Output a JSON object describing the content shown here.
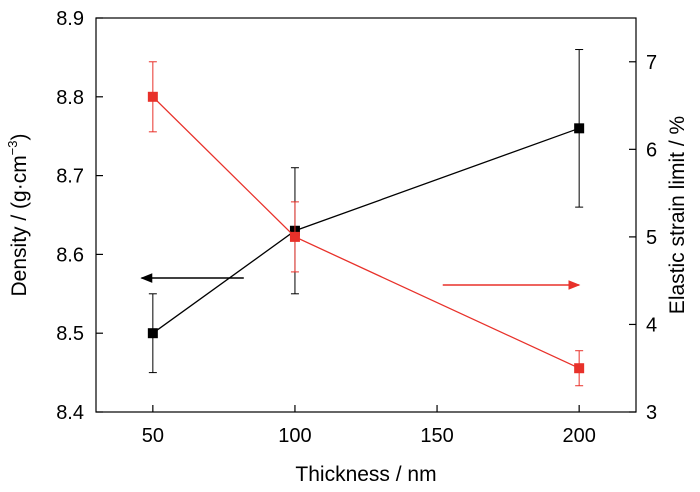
{
  "chart_data": {
    "type": "line",
    "title": "",
    "xlabel": "Thickness / nm",
    "ylabel_left_main": "Density / (g·cm",
    "ylabel_left_sup": "−3",
    "ylabel_left_close": ")",
    "ylabel_right": "Elastic strain limit / %",
    "xlim": [
      30,
      220
    ],
    "ylim_left": [
      8.4,
      8.9
    ],
    "ylim_right": [
      3,
      7.5
    ],
    "x_ticks": [
      50,
      100,
      150,
      200
    ],
    "y_left_ticks": [
      8.4,
      8.5,
      8.6,
      8.7,
      8.8,
      8.9
    ],
    "y_right_ticks": [
      3,
      4,
      5,
      6,
      7
    ],
    "x_tick_labels": [
      "50",
      "100",
      "150",
      "200"
    ],
    "y_left_tick_labels": [
      "8.4",
      "8.5",
      "8.6",
      "8.7",
      "8.8",
      "8.9"
    ],
    "y_right_tick_labels": [
      "3",
      "4",
      "5",
      "6",
      "7"
    ],
    "series": [
      {
        "axis": "left",
        "color": "#000000",
        "x": [
          50,
          100,
          200
        ],
        "y": [
          8.5,
          8.63,
          8.76
        ],
        "err": [
          0.05,
          0.08,
          0.1
        ]
      },
      {
        "axis": "right",
        "color": "#e8312a",
        "x": [
          50,
          100,
          200
        ],
        "y": [
          6.6,
          5.0,
          3.5
        ],
        "err": [
          0.4,
          0.4,
          0.2
        ]
      }
    ],
    "annotations": [
      {
        "type": "arrow",
        "direction": "left",
        "axis": "left",
        "color": "#000000",
        "x_from": 82,
        "x_to": 46,
        "y": 8.57
      },
      {
        "type": "arrow",
        "direction": "right",
        "axis": "right",
        "color": "#e8312a",
        "x_from": 152,
        "x_to": 200,
        "y": 4.45
      }
    ],
    "grid": false,
    "legend": "none"
  }
}
